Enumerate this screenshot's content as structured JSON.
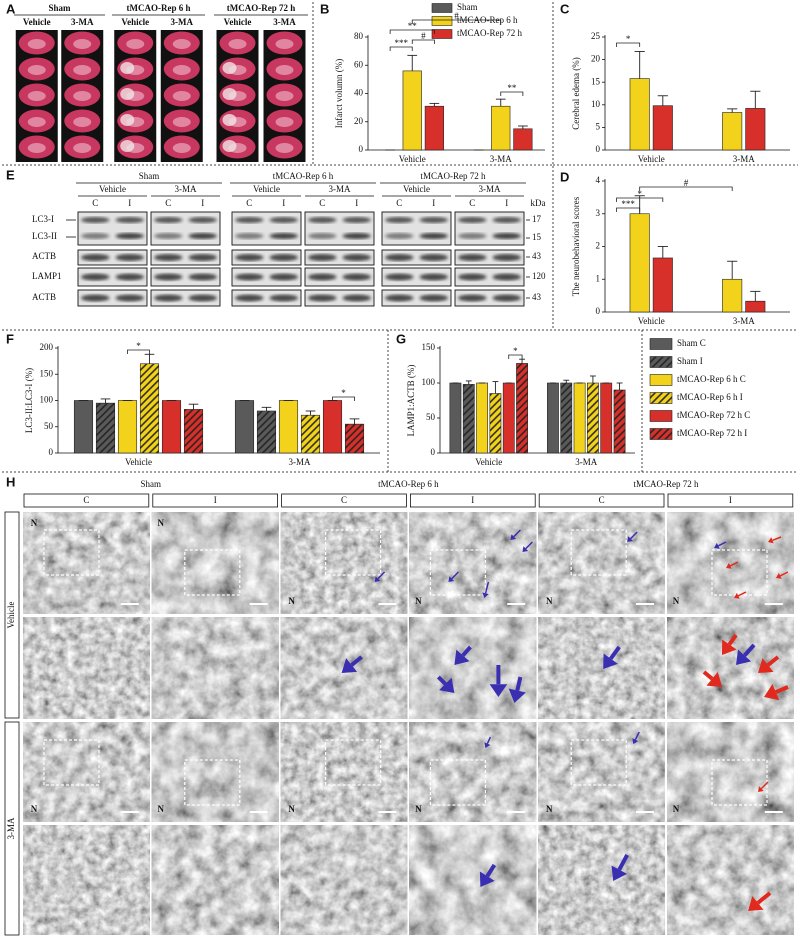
{
  "panel_A": {
    "label": "A",
    "groups": [
      {
        "title": "Sham",
        "conditions": [
          "Vehicle",
          "3-MA"
        ]
      },
      {
        "title": "tMCAO-Rep 6 h",
        "conditions": [
          "Vehicle",
          "3-MA"
        ]
      },
      {
        "title": "tMCAO-Rep 72 h",
        "conditions": [
          "Vehicle",
          "3-MA"
        ]
      }
    ]
  },
  "chart_data": [
    {
      "type": "bar",
      "panel": "B",
      "y_label": "Infarct volumn (%)",
      "categories": [
        "Vehicle",
        "3-MA"
      ],
      "ylim": [
        0,
        80
      ],
      "yticks": [
        0,
        20,
        40,
        60,
        80
      ],
      "legend": true,
      "series": [
        {
          "name": "Sham",
          "color": "#5a5a5a",
          "values": [
            0,
            0
          ],
          "errors": [
            0,
            0
          ]
        },
        {
          "name": "tMCAO-Rep 6 h",
          "color": "#f2d21b",
          "values": [
            56,
            31
          ],
          "errors": [
            11,
            5
          ]
        },
        {
          "name": "tMCAO-Rep 72 h",
          "color": "#d7302a",
          "values": [
            31,
            15
          ],
          "errors": [
            2,
            2
          ]
        }
      ],
      "annotations": [
        "***",
        "**",
        "#",
        "#",
        "**"
      ]
    },
    {
      "type": "bar",
      "panel": "C",
      "y_label": "Cerebral edema (%)",
      "categories": [
        "Vehicle",
        "3-MA"
      ],
      "ylim": [
        0,
        25
      ],
      "yticks": [
        0,
        5,
        10,
        15,
        20,
        25
      ],
      "series": [
        {
          "color": "#f2d21b",
          "values": [
            15.8,
            8.3
          ],
          "errors": [
            6,
            0.8
          ]
        },
        {
          "color": "#d7302a",
          "values": [
            9.8,
            9.2
          ],
          "errors": [
            2.2,
            3.8
          ]
        }
      ],
      "annotations": [
        "*"
      ]
    },
    {
      "type": "bar",
      "panel": "D",
      "y_label": "The neurobehavioral scores",
      "categories": [
        "Vehicle",
        "3-MA"
      ],
      "ylim": [
        0,
        4
      ],
      "yticks": [
        0,
        1,
        2,
        3,
        4
      ],
      "series": [
        {
          "color": "#f2d21b",
          "values": [
            3,
            1
          ],
          "errors": [
            0.55,
            0.55
          ]
        },
        {
          "color": "#d7302a",
          "values": [
            1.65,
            0.33
          ],
          "errors": [
            0.35,
            0.3
          ]
        }
      ],
      "annotations": [
        "***",
        "*",
        "#"
      ]
    },
    {
      "type": "bar",
      "panel": "F",
      "y_label": "LC3-II:LC3-I (%)",
      "categories": [
        "Vehicle",
        "3-MA"
      ],
      "ylim": [
        0,
        200
      ],
      "yticks": [
        0,
        50,
        100,
        150,
        200
      ],
      "legend": true,
      "series": [
        {
          "name": "Sham C",
          "color": "#5a5a5a",
          "hatch": false,
          "values": [
            100,
            100
          ],
          "errors": [
            0,
            0
          ]
        },
        {
          "name": "Sham I",
          "color": "#5a5a5a",
          "hatch": true,
          "values": [
            95,
            80
          ],
          "errors": [
            8,
            7
          ]
        },
        {
          "name": "tMCAO-Rep 6 h C",
          "color": "#f2d21b",
          "hatch": false,
          "values": [
            100,
            100
          ],
          "errors": [
            0,
            0
          ]
        },
        {
          "name": "tMCAO-Rep 6 h I",
          "color": "#f2d21b",
          "hatch": true,
          "values": [
            170,
            72
          ],
          "errors": [
            18,
            8
          ]
        },
        {
          "name": "tMCAO-Rep 72 h C",
          "color": "#d7302a",
          "hatch": false,
          "values": [
            100,
            100
          ],
          "errors": [
            0,
            0
          ]
        },
        {
          "name": "tMCAO-Rep 72 h I",
          "color": "#d7302a",
          "hatch": true,
          "values": [
            83,
            55
          ],
          "errors": [
            10,
            10
          ]
        }
      ],
      "annotations": [
        "*",
        "*"
      ]
    },
    {
      "type": "bar",
      "panel": "G",
      "y_label": "LAMP1:ACTB (%)",
      "categories": [
        "Vehicle",
        "3-MA"
      ],
      "ylim": [
        0,
        150
      ],
      "yticks": [
        0,
        50,
        100,
        150
      ],
      "series": [
        {
          "values": [
            100,
            100
          ],
          "errors": [
            0,
            0
          ]
        },
        {
          "values": [
            98,
            100
          ],
          "errors": [
            5,
            4
          ]
        },
        {
          "values": [
            100,
            100
          ],
          "errors": [
            0,
            0
          ]
        },
        {
          "values": [
            85,
            100
          ],
          "errors": [
            17,
            10
          ]
        },
        {
          "values": [
            100,
            100
          ],
          "errors": [
            0,
            0
          ]
        },
        {
          "values": [
            128,
            90
          ],
          "errors": [
            6,
            10
          ]
        }
      ],
      "annotations": [
        "*"
      ]
    }
  ],
  "panel_E": {
    "label": "E",
    "groups": [
      {
        "title": "Sham",
        "conditions": [
          "Vehicle",
          "3-MA"
        ]
      },
      {
        "title": "tMCAO-Rep 6 h",
        "conditions": [
          "Vehicle",
          "3-MA"
        ]
      },
      {
        "title": "tMCAO-Rep 72 h",
        "conditions": [
          "Vehicle",
          "3-MA"
        ]
      }
    ],
    "lanes": [
      "C",
      "I"
    ],
    "rows": [
      "LC3-I",
      "LC3-II",
      "ACTB",
      "LAMP1",
      "ACTB"
    ],
    "kda_label": "kDa",
    "kda": [
      "17",
      "15",
      "43",
      "120",
      "43"
    ]
  },
  "panel_H": {
    "label": "H",
    "groups": [
      "Sham",
      "tMCAO-Rep 6 h",
      "tMCAO-Rep 72 h"
    ],
    "columns": [
      "C",
      "I"
    ],
    "rows": [
      "Vehicle",
      "3-MA"
    ],
    "nucleus_label": "N"
  }
}
